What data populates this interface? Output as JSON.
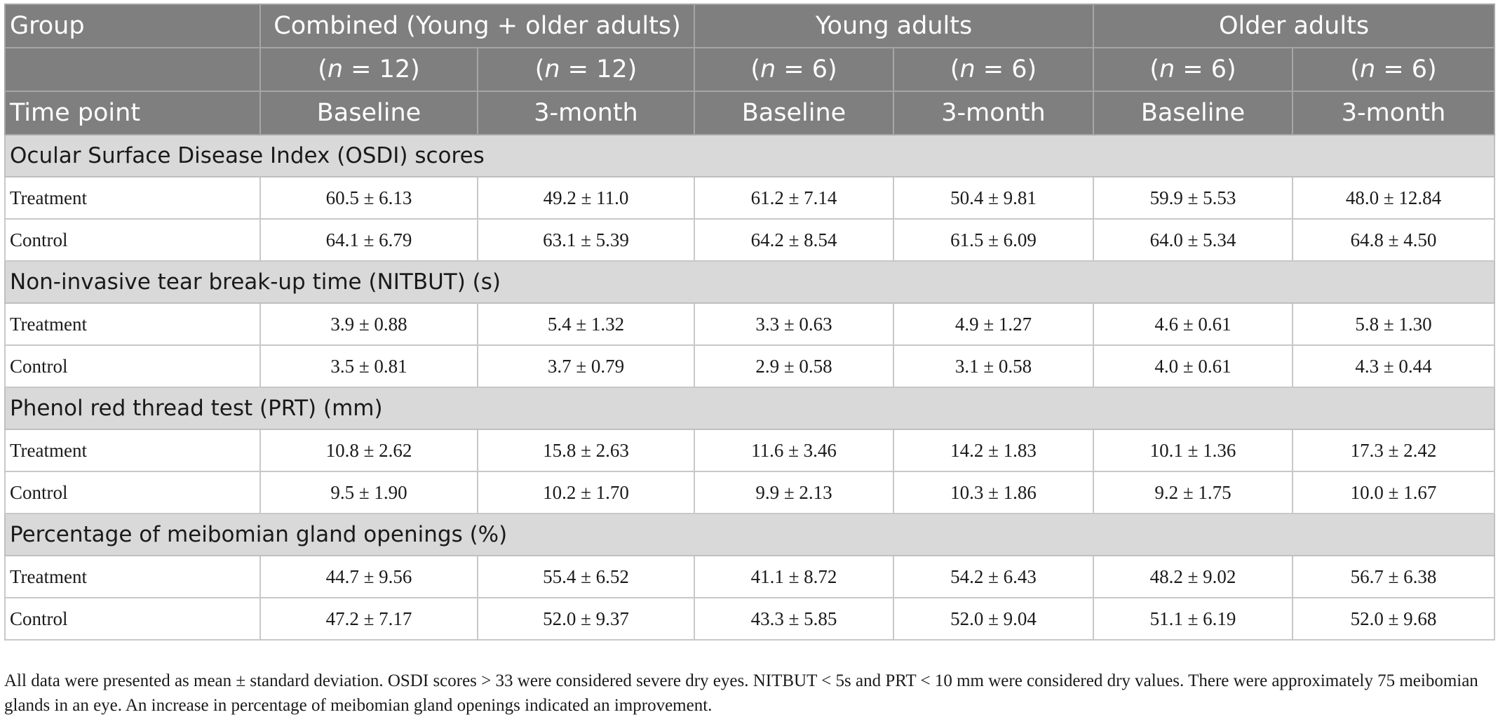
{
  "table": {
    "header": {
      "group_label": "Group",
      "groups": [
        "Combined (Young + older adults)",
        "Young adults",
        "Older adults"
      ],
      "n_row": [
        "(n = 12)",
        "(n = 12)",
        "(n = 6)",
        "(n = 6)",
        "(n = 6)",
        "(n = 6)"
      ],
      "n_letter": "n",
      "n_values": [
        "12",
        "12",
        "6",
        "6",
        "6",
        "6"
      ],
      "time_point_label": "Time point",
      "time_points": [
        "Baseline",
        "3-month",
        "Baseline",
        "3-month",
        "Baseline",
        "3-month"
      ]
    },
    "sections": [
      {
        "title": "Ocular Surface Disease Index (OSDI) scores",
        "rows": [
          {
            "label": "Treatment",
            "values": [
              "60.5 ± 6.13",
              "49.2 ± 11.0",
              "61.2 ± 7.14",
              "50.4 ± 9.81",
              "59.9 ± 5.53",
              "48.0 ± 12.84"
            ]
          },
          {
            "label": "Control",
            "values": [
              "64.1 ± 6.79",
              "63.1 ± 5.39",
              "64.2 ± 8.54",
              "61.5 ± 6.09",
              "64.0 ± 5.34",
              "64.8 ± 4.50"
            ]
          }
        ]
      },
      {
        "title": "Non-invasive tear break-up time (NITBUT) (s)",
        "rows": [
          {
            "label": "Treatment",
            "values": [
              "3.9 ± 0.88",
              "5.4 ± 1.32",
              "3.3 ± 0.63",
              "4.9 ± 1.27",
              "4.6 ± 0.61",
              "5.8 ± 1.30"
            ]
          },
          {
            "label": "Control",
            "values": [
              "3.5 ± 0.81",
              "3.7 ± 0.79",
              "2.9 ± 0.58",
              "3.1 ± 0.58",
              "4.0 ± 0.61",
              "4.3 ± 0.44"
            ]
          }
        ]
      },
      {
        "title": "Phenol red thread test (PRT) (mm)",
        "rows": [
          {
            "label": "Treatment",
            "values": [
              "10.8 ± 2.62",
              "15.8 ± 2.63",
              "11.6 ± 3.46",
              "14.2 ± 1.83",
              "10.1 ± 1.36",
              "17.3 ± 2.42"
            ]
          },
          {
            "label": "Control",
            "values": [
              "9.5 ± 1.90",
              "10.2 ± 1.70",
              "9.9 ± 2.13",
              "10.3 ± 1.86",
              "9.2 ± 1.75",
              "10.0 ± 1.67"
            ]
          }
        ]
      },
      {
        "title": "Percentage of meibomian gland openings (%)",
        "rows": [
          {
            "label": "Treatment",
            "values": [
              "44.7 ± 9.56",
              "55.4 ± 6.52",
              "41.1 ± 8.72",
              "54.2 ± 6.43",
              "48.2 ± 9.02",
              "56.7 ± 6.38"
            ]
          },
          {
            "label": "Control",
            "values": [
              "47.2 ± 7.17",
              "52.0 ± 9.37",
              "43.3 ± 5.85",
              "52.0 ± 9.04",
              "51.1 ± 6.19",
              "52.0 ± 9.68"
            ]
          }
        ]
      }
    ]
  },
  "footnote": "All data were presented as mean ± standard deviation. OSDI scores > 33 were considered severe dry eyes. NITBUT < 5s and PRT < 10 mm were considered dry values. There were approximately 75 meibomian glands in an eye. An increase in percentage of meibomian gland openings indicated an improvement.",
  "colors": {
    "header_bg": "#7f7f7f",
    "header_text": "#ffffff",
    "section_bg": "#d9d9d9",
    "grid_line": "#c8c8c8"
  }
}
